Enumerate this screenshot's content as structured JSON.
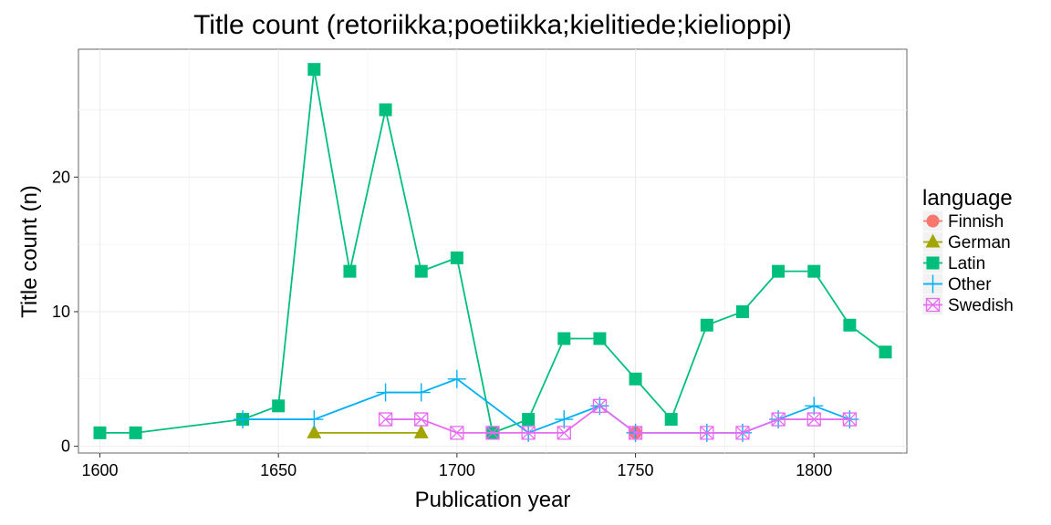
{
  "chart_data": {
    "type": "line",
    "title": "Title count (retoriikka;poetiikka;kielitiede;kielioppi)",
    "xlabel": "Publication year",
    "ylabel": "Title count (n)",
    "xlim": [
      1594,
      1826
    ],
    "ylim": [
      -0.5,
      29.5
    ],
    "xticks": [
      1600,
      1650,
      1700,
      1750,
      1800
    ],
    "yticks": [
      0,
      10,
      20
    ],
    "grid": true,
    "legend": {
      "title": "language",
      "placement": "right"
    },
    "series": [
      {
        "name": "Finnish",
        "color": "#F8766D",
        "marker": "circle",
        "x": [
          1750
        ],
        "y": [
          1
        ]
      },
      {
        "name": "German",
        "color": "#A3A500",
        "marker": "triangle",
        "x": [
          1660,
          1690
        ],
        "y": [
          1,
          1
        ]
      },
      {
        "name": "Latin",
        "color": "#00BF7D",
        "marker": "square",
        "x": [
          1600,
          1610,
          1640,
          1650,
          1660,
          1670,
          1680,
          1690,
          1700,
          1710,
          1720,
          1730,
          1740,
          1750,
          1760,
          1770,
          1780,
          1790,
          1800,
          1810,
          1820
        ],
        "y": [
          1,
          1,
          2,
          3,
          28,
          13,
          25,
          13,
          14,
          1,
          2,
          8,
          8,
          5,
          2,
          9,
          10,
          13,
          13,
          9,
          7
        ]
      },
      {
        "name": "Other",
        "color": "#00B0F6",
        "marker": "plus",
        "x": [
          1640,
          1660,
          1680,
          1690,
          1700,
          1720,
          1730,
          1740,
          1750,
          1770,
          1780,
          1790,
          1800,
          1810
        ],
        "y": [
          2,
          2,
          4,
          4,
          5,
          1,
          2,
          3,
          1,
          1,
          1,
          2,
          3,
          2
        ]
      },
      {
        "name": "Swedish",
        "color": "#E76BF3",
        "marker": "boxx",
        "x": [
          1680,
          1690,
          1700,
          1710,
          1720,
          1730,
          1740,
          1750,
          1770,
          1780,
          1790,
          1800,
          1810
        ],
        "y": [
          2,
          2,
          1,
          1,
          1,
          1,
          3,
          1,
          1,
          1,
          2,
          2,
          2
        ]
      }
    ]
  }
}
